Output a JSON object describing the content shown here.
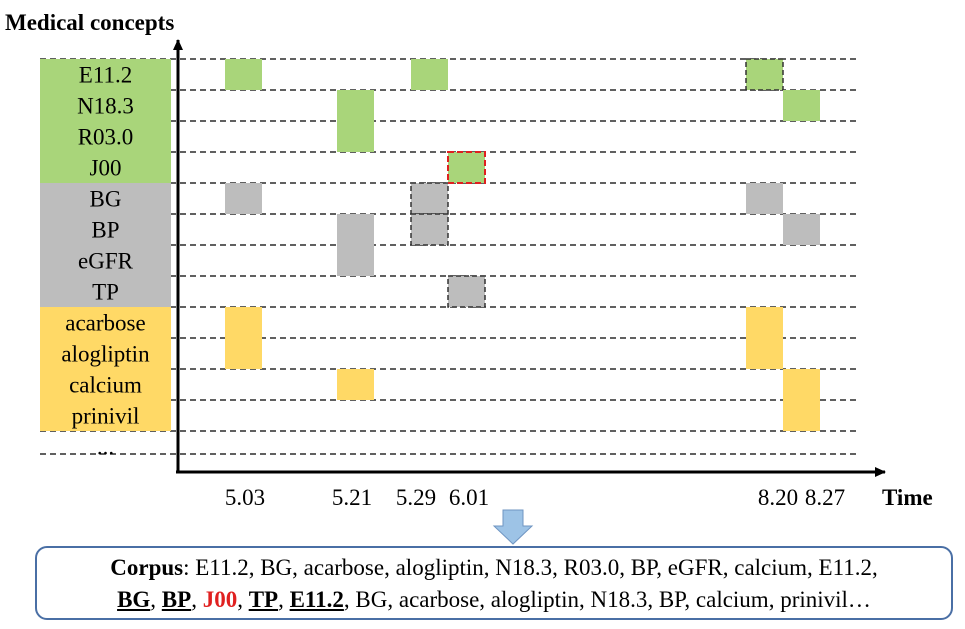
{
  "y_axis_title": "Medical concepts",
  "x_axis_title": "Time",
  "colors": {
    "diagnosis": "#a9d57a",
    "lab": "#bdbdbd",
    "medication": "#ffd966",
    "highlight_border": "#e02020",
    "arrow": "#9dc3e6",
    "corpus_border": "#4a6fa5"
  },
  "rows": [
    {
      "label": "E11.2",
      "category": "diagnosis"
    },
    {
      "label": "N18.3",
      "category": "diagnosis"
    },
    {
      "label": "R03.0",
      "category": "diagnosis"
    },
    {
      "label": "J00",
      "category": "diagnosis"
    },
    {
      "label": "BG",
      "category": "lab"
    },
    {
      "label": "BP",
      "category": "lab"
    },
    {
      "label": "eGFR",
      "category": "lab"
    },
    {
      "label": "TP",
      "category": "lab"
    },
    {
      "label": "acarbose",
      "category": "medication"
    },
    {
      "label": "alogliptin",
      "category": "medication"
    },
    {
      "label": "calcium",
      "category": "medication"
    },
    {
      "label": "prinivil",
      "category": "medication"
    },
    {
      "label": "...",
      "category": "none"
    }
  ],
  "time_labels": [
    "5.03",
    "5.21",
    "5.29",
    "6.01",
    "8.20",
    "8.27"
  ],
  "events": [
    {
      "row": "E11.2",
      "time": "5.03"
    },
    {
      "row": "E11.2",
      "time": "5.29"
    },
    {
      "row": "E11.2",
      "time": "8.20",
      "style": "dashed"
    },
    {
      "row": "N18.3",
      "time": "5.21"
    },
    {
      "row": "N18.3",
      "time": "8.27"
    },
    {
      "row": "R03.0",
      "time": "5.21"
    },
    {
      "row": "J00",
      "time": "6.01",
      "style": "red-dashed"
    },
    {
      "row": "BG",
      "time": "5.03"
    },
    {
      "row": "BG",
      "time": "5.29",
      "style": "dashed"
    },
    {
      "row": "BG",
      "time": "8.20"
    },
    {
      "row": "BP",
      "time": "5.21"
    },
    {
      "row": "BP",
      "time": "5.29",
      "style": "dashed"
    },
    {
      "row": "BP",
      "time": "8.27"
    },
    {
      "row": "eGFR",
      "time": "5.21"
    },
    {
      "row": "TP",
      "time": "6.01",
      "style": "dashed"
    },
    {
      "row": "acarbose",
      "time": "5.03"
    },
    {
      "row": "acarbose",
      "time": "8.20"
    },
    {
      "row": "alogliptin",
      "time": "5.03"
    },
    {
      "row": "alogliptin",
      "time": "8.20"
    },
    {
      "row": "calcium",
      "time": "5.21"
    },
    {
      "row": "calcium",
      "time": "8.27"
    },
    {
      "row": "prinivil",
      "time": "8.27"
    }
  ],
  "corpus": {
    "label": "Corpus",
    "line1_text": ": E11.2, BG, acarbose, alogliptin, N18.3, R03.0, BP, eGFR, calcium, E11.2,",
    "highlighted": [
      "BG",
      "BP",
      "J00",
      "TP",
      "E11.2"
    ],
    "line2_rest": ", BG, acarbose, alogliptin, N18.3, BP, calcium, prinivil…"
  }
}
